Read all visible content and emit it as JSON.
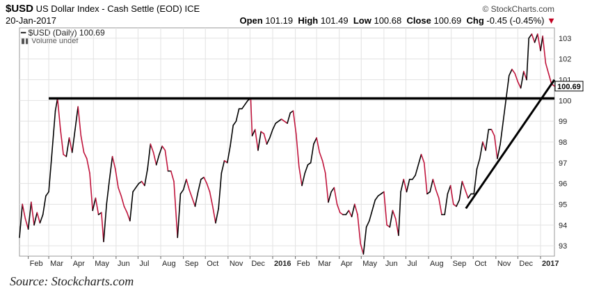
{
  "header": {
    "symbol": "$USD",
    "name": "US Dollar Index - Cash Settle (EOD)",
    "exchange": "ICE",
    "date": "20-Jan-2017",
    "watermark": "© StockCharts.com",
    "open_label": "Open",
    "open": "101.19",
    "high_label": "High",
    "high": "101.49",
    "low_label": "Low",
    "low": "100.68",
    "close_label": "Close",
    "close": "100.69",
    "chg_label": "Chg",
    "chg": "-0.45 (-0.45%)"
  },
  "legend": {
    "series": "$USD (Daily) 100.69",
    "volume": "Volume undef"
  },
  "source": "Source: Stockcharts.com",
  "colors": {
    "up": "#000000",
    "down": "#c0143c",
    "trend": "#000000"
  },
  "chart_data": {
    "type": "line",
    "title": "$USD US Dollar Index - Cash Settle (EOD)",
    "ylim": [
      92.5,
      103.5
    ],
    "yticks": [
      93,
      94,
      95,
      96,
      97,
      98,
      99,
      100,
      101,
      102,
      103
    ],
    "last_value_label": "100.69",
    "last_value": 100.69,
    "x_ticks": [
      "Feb",
      "Mar",
      "Apr",
      "May",
      "Jun",
      "Jul",
      "Aug",
      "Sep",
      "Oct",
      "Nov",
      "Dec",
      "2016",
      "Feb",
      "Mar",
      "Apr",
      "May",
      "Jun",
      "Jul",
      "Aug",
      "Sep",
      "Oct",
      "Nov",
      "Dec",
      "2017"
    ],
    "x_range": [
      "2015-01-20",
      "2017-01-20"
    ],
    "series": [
      {
        "values": [
          [
            "2015-01-20",
            93.4
          ],
          [
            "2015-01-24",
            95.0
          ],
          [
            "2015-01-28",
            94.3
          ],
          [
            "2015-02-01",
            93.8
          ],
          [
            "2015-02-05",
            95.1
          ],
          [
            "2015-02-09",
            94.0
          ],
          [
            "2015-02-13",
            94.6
          ],
          [
            "2015-02-17",
            94.1
          ],
          [
            "2015-02-21",
            94.5
          ],
          [
            "2015-02-25",
            95.4
          ],
          [
            "2015-03-01",
            95.6
          ],
          [
            "2015-03-05",
            97.3
          ],
          [
            "2015-03-10",
            99.5
          ],
          [
            "2015-03-13",
            100.1
          ],
          [
            "2015-03-17",
            98.6
          ],
          [
            "2015-03-21",
            97.4
          ],
          [
            "2015-03-25",
            97.3
          ],
          [
            "2015-03-29",
            98.2
          ],
          [
            "2015-04-02",
            97.5
          ],
          [
            "2015-04-06",
            98.6
          ],
          [
            "2015-04-10",
            99.7
          ],
          [
            "2015-04-14",
            98.3
          ],
          [
            "2015-04-18",
            97.5
          ],
          [
            "2015-04-22",
            97.2
          ],
          [
            "2015-04-26",
            96.5
          ],
          [
            "2015-04-30",
            94.7
          ],
          [
            "2015-05-04",
            95.3
          ],
          [
            "2015-05-08",
            94.5
          ],
          [
            "2015-05-12",
            94.6
          ],
          [
            "2015-05-15",
            93.2
          ],
          [
            "2015-05-19",
            95.0
          ],
          [
            "2015-05-23",
            96.2
          ],
          [
            "2015-05-27",
            97.3
          ],
          [
            "2015-05-31",
            96.7
          ],
          [
            "2015-06-04",
            95.8
          ],
          [
            "2015-06-08",
            95.4
          ],
          [
            "2015-06-12",
            94.9
          ],
          [
            "2015-06-16",
            94.6
          ],
          [
            "2015-06-20",
            94.2
          ],
          [
            "2015-06-24",
            95.6
          ],
          [
            "2015-06-28",
            95.8
          ],
          [
            "2015-07-02",
            96.0
          ],
          [
            "2015-07-06",
            96.1
          ],
          [
            "2015-07-10",
            95.9
          ],
          [
            "2015-07-14",
            96.7
          ],
          [
            "2015-07-18",
            97.9
          ],
          [
            "2015-07-22",
            97.5
          ],
          [
            "2015-07-26",
            96.9
          ],
          [
            "2015-07-30",
            97.4
          ],
          [
            "2015-08-03",
            97.8
          ],
          [
            "2015-08-07",
            97.6
          ],
          [
            "2015-08-11",
            96.6
          ],
          [
            "2015-08-15",
            96.6
          ],
          [
            "2015-08-19",
            96.1
          ],
          [
            "2015-08-24",
            93.4
          ],
          [
            "2015-08-28",
            95.5
          ],
          [
            "2015-09-01",
            95.7
          ],
          [
            "2015-09-05",
            96.2
          ],
          [
            "2015-09-09",
            95.7
          ],
          [
            "2015-09-13",
            95.3
          ],
          [
            "2015-09-17",
            94.9
          ],
          [
            "2015-09-21",
            95.6
          ],
          [
            "2015-09-25",
            96.2
          ],
          [
            "2015-09-29",
            96.3
          ],
          [
            "2015-10-03",
            96.0
          ],
          [
            "2015-10-07",
            95.6
          ],
          [
            "2015-10-11",
            94.9
          ],
          [
            "2015-10-15",
            94.1
          ],
          [
            "2015-10-19",
            94.8
          ],
          [
            "2015-10-23",
            96.5
          ],
          [
            "2015-10-27",
            97.1
          ],
          [
            "2015-10-31",
            97.0
          ],
          [
            "2015-11-04",
            97.8
          ],
          [
            "2015-11-08",
            98.8
          ],
          [
            "2015-11-12",
            99.0
          ],
          [
            "2015-11-16",
            99.6
          ],
          [
            "2015-11-20",
            99.6
          ],
          [
            "2015-11-24",
            99.8
          ],
          [
            "2015-11-28",
            100.0
          ],
          [
            "2015-12-02",
            100.1
          ],
          [
            "2015-12-04",
            98.3
          ],
          [
            "2015-12-08",
            98.6
          ],
          [
            "2015-12-12",
            97.6
          ],
          [
            "2015-12-16",
            98.5
          ],
          [
            "2015-12-20",
            98.4
          ],
          [
            "2015-12-24",
            97.9
          ],
          [
            "2015-12-28",
            98.2
          ],
          [
            "2016-01-01",
            98.6
          ],
          [
            "2016-01-05",
            98.9
          ],
          [
            "2016-01-09",
            99.0
          ],
          [
            "2016-01-13",
            99.1
          ],
          [
            "2016-01-17",
            99.0
          ],
          [
            "2016-01-21",
            98.9
          ],
          [
            "2016-01-25",
            99.4
          ],
          [
            "2016-01-29",
            99.5
          ],
          [
            "2016-02-02",
            98.4
          ],
          [
            "2016-02-06",
            96.8
          ],
          [
            "2016-02-10",
            95.9
          ],
          [
            "2016-02-14",
            96.5
          ],
          [
            "2016-02-18",
            96.9
          ],
          [
            "2016-02-22",
            97.0
          ],
          [
            "2016-02-26",
            97.9
          ],
          [
            "2016-03-01",
            98.2
          ],
          [
            "2016-03-05",
            97.5
          ],
          [
            "2016-03-09",
            97.1
          ],
          [
            "2016-03-13",
            96.5
          ],
          [
            "2016-03-17",
            95.1
          ],
          [
            "2016-03-21",
            95.6
          ],
          [
            "2016-03-25",
            95.8
          ],
          [
            "2016-03-29",
            95.0
          ],
          [
            "2016-04-02",
            94.6
          ],
          [
            "2016-04-06",
            94.5
          ],
          [
            "2016-04-10",
            94.5
          ],
          [
            "2016-04-14",
            94.7
          ],
          [
            "2016-04-18",
            94.4
          ],
          [
            "2016-04-22",
            95.0
          ],
          [
            "2016-04-26",
            94.5
          ],
          [
            "2016-04-30",
            93.1
          ],
          [
            "2016-05-04",
            92.6
          ],
          [
            "2016-05-08",
            93.9
          ],
          [
            "2016-05-12",
            94.2
          ],
          [
            "2016-05-16",
            94.7
          ],
          [
            "2016-05-20",
            95.2
          ],
          [
            "2016-05-24",
            95.4
          ],
          [
            "2016-05-28",
            95.5
          ],
          [
            "2016-06-01",
            95.6
          ],
          [
            "2016-06-05",
            94.0
          ],
          [
            "2016-06-09",
            93.9
          ],
          [
            "2016-06-13",
            94.7
          ],
          [
            "2016-06-17",
            94.3
          ],
          [
            "2016-06-21",
            93.5
          ],
          [
            "2016-06-24",
            95.6
          ],
          [
            "2016-06-28",
            96.2
          ],
          [
            "2016-07-02",
            95.6
          ],
          [
            "2016-07-06",
            96.2
          ],
          [
            "2016-07-10",
            96.2
          ],
          [
            "2016-07-14",
            96.4
          ],
          [
            "2016-07-18",
            96.9
          ],
          [
            "2016-07-22",
            97.4
          ],
          [
            "2016-07-26",
            97.0
          ],
          [
            "2016-07-30",
            95.5
          ],
          [
            "2016-08-03",
            95.6
          ],
          [
            "2016-08-07",
            96.2
          ],
          [
            "2016-08-11",
            95.7
          ],
          [
            "2016-08-15",
            95.3
          ],
          [
            "2016-08-19",
            94.5
          ],
          [
            "2016-08-23",
            94.5
          ],
          [
            "2016-08-27",
            95.5
          ],
          [
            "2016-08-31",
            95.9
          ],
          [
            "2016-09-04",
            95.0
          ],
          [
            "2016-09-08",
            94.9
          ],
          [
            "2016-09-12",
            95.2
          ],
          [
            "2016-09-16",
            96.1
          ],
          [
            "2016-09-20",
            95.7
          ],
          [
            "2016-09-24",
            95.3
          ],
          [
            "2016-09-28",
            95.5
          ],
          [
            "2016-10-02",
            95.5
          ],
          [
            "2016-10-06",
            96.7
          ],
          [
            "2016-10-10",
            97.2
          ],
          [
            "2016-10-14",
            98.0
          ],
          [
            "2016-10-18",
            97.6
          ],
          [
            "2016-10-22",
            98.6
          ],
          [
            "2016-10-26",
            98.6
          ],
          [
            "2016-10-30",
            98.3
          ],
          [
            "2016-11-03",
            97.2
          ],
          [
            "2016-11-07",
            97.9
          ],
          [
            "2016-11-11",
            99.0
          ],
          [
            "2016-11-15",
            100.1
          ],
          [
            "2016-11-19",
            101.2
          ],
          [
            "2016-11-23",
            101.5
          ],
          [
            "2016-11-27",
            101.3
          ],
          [
            "2016-12-01",
            100.9
          ],
          [
            "2016-12-05",
            100.6
          ],
          [
            "2016-12-09",
            101.4
          ],
          [
            "2016-12-13",
            101.0
          ],
          [
            "2016-12-16",
            103.0
          ],
          [
            "2016-12-20",
            103.2
          ],
          [
            "2016-12-24",
            102.8
          ],
          [
            "2016-12-28",
            103.2
          ],
          [
            "2017-01-01",
            102.4
          ],
          [
            "2017-01-04",
            103.1
          ],
          [
            "2017-01-08",
            101.8
          ],
          [
            "2017-01-12",
            101.3
          ],
          [
            "2017-01-16",
            100.8
          ],
          [
            "2017-01-20",
            100.69
          ]
        ]
      }
    ],
    "resistance_line": {
      "value": 100.1,
      "from": "2015-03-01",
      "to": "2017-01-20"
    },
    "trend_line": {
      "from": [
        "2016-09-21",
        94.8
      ],
      "to": [
        "2017-01-20",
        101.0
      ]
    }
  }
}
